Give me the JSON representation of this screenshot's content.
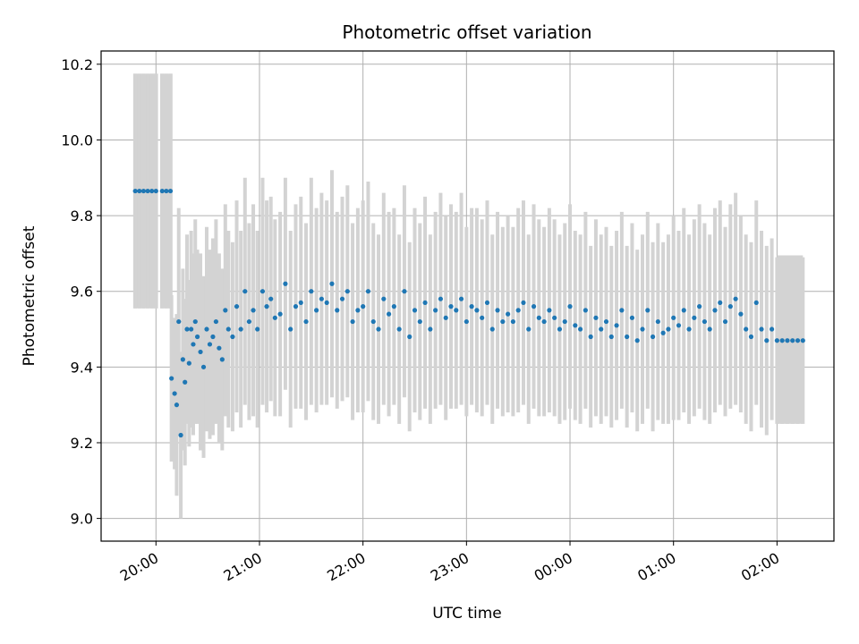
{
  "chart_data": {
    "type": "scatter",
    "title": "Photometric offset variation",
    "xlabel": "UTC time",
    "ylabel": "Photometric offset",
    "x_unit": "hours",
    "xlim": [
      19.47,
      26.55
    ],
    "ylim": [
      8.94,
      10.235
    ],
    "grid": true,
    "legend": "none",
    "x_ticks": [
      {
        "value": 20,
        "label": "20:00"
      },
      {
        "value": 21,
        "label": "21:00"
      },
      {
        "value": 22,
        "label": "22:00"
      },
      {
        "value": 23,
        "label": "23:00"
      },
      {
        "value": 24,
        "label": "00:00"
      },
      {
        "value": 25,
        "label": "01:00"
      },
      {
        "value": 26,
        "label": "02:00"
      }
    ],
    "y_ticks": [
      {
        "value": 9.0,
        "label": "9.0"
      },
      {
        "value": 9.2,
        "label": "9.2"
      },
      {
        "value": 9.4,
        "label": "9.4"
      },
      {
        "value": 9.6,
        "label": "9.6"
      },
      {
        "value": 9.8,
        "label": "9.8"
      },
      {
        "value": 10.0,
        "label": "10.0"
      },
      {
        "value": 10.2,
        "label": "10.2"
      }
    ],
    "colors": {
      "points": "#1f77b4",
      "errorbars": "#d3d3d3",
      "grid": "#b0b0b0"
    },
    "wide_errorbars": [
      {
        "x0": 19.78,
        "x1": 20.02,
        "low": 9.555,
        "high": 10.175
      },
      {
        "x0": 20.04,
        "x1": 20.16,
        "low": 9.555,
        "high": 10.175
      },
      {
        "x0": 26.0,
        "x1": 26.25,
        "low": 9.25,
        "high": 9.695
      }
    ],
    "series": [
      {
        "x": [
          19.8,
          19.84,
          19.88,
          19.92,
          19.96,
          20.0,
          20.06,
          20.1,
          20.14,
          20.15,
          20.18,
          20.2,
          20.22,
          20.24,
          20.26,
          20.28,
          20.3,
          20.32,
          20.34,
          20.36,
          20.38,
          20.4,
          20.43,
          20.46,
          20.49,
          20.52,
          20.55,
          20.58,
          20.61,
          20.64,
          20.67,
          20.7,
          20.74,
          20.78,
          20.82,
          20.86,
          20.9,
          20.94,
          20.98,
          21.03,
          21.07,
          21.11,
          21.15,
          21.2,
          21.25,
          21.3,
          21.35,
          21.4,
          21.45,
          21.5,
          21.55,
          21.6,
          21.65,
          21.7,
          21.75,
          21.8,
          21.85,
          21.9,
          21.95,
          22.0,
          22.05,
          22.1,
          22.15,
          22.2,
          22.25,
          22.3,
          22.35,
          22.4,
          22.45,
          22.5,
          22.55,
          22.6,
          22.65,
          22.7,
          22.75,
          22.8,
          22.85,
          22.9,
          22.95,
          23.0,
          23.05,
          23.1,
          23.15,
          23.2,
          23.25,
          23.3,
          23.35,
          23.4,
          23.45,
          23.5,
          23.55,
          23.6,
          23.65,
          23.7,
          23.75,
          23.8,
          23.85,
          23.9,
          23.95,
          24.0,
          24.05,
          24.1,
          24.15,
          24.2,
          24.25,
          24.3,
          24.35,
          24.4,
          24.45,
          24.5,
          24.55,
          24.6,
          24.65,
          24.7,
          24.75,
          24.8,
          24.85,
          24.9,
          24.95,
          25.0,
          25.05,
          25.1,
          25.15,
          25.2,
          25.25,
          25.3,
          25.35,
          25.4,
          25.45,
          25.5,
          25.55,
          25.6,
          25.65,
          25.7,
          25.75,
          25.8,
          25.85,
          25.9,
          25.95,
          26.0,
          26.05,
          26.1,
          26.15,
          26.2,
          26.25
        ],
        "y": [
          9.865,
          9.865,
          9.865,
          9.865,
          9.865,
          9.865,
          9.865,
          9.865,
          9.865,
          9.37,
          9.33,
          9.3,
          9.52,
          9.22,
          9.42,
          9.36,
          9.5,
          9.41,
          9.5,
          9.46,
          9.52,
          9.48,
          9.44,
          9.4,
          9.5,
          9.46,
          9.48,
          9.52,
          9.45,
          9.42,
          9.55,
          9.5,
          9.48,
          9.56,
          9.5,
          9.6,
          9.52,
          9.55,
          9.5,
          9.6,
          9.56,
          9.58,
          9.53,
          9.54,
          9.62,
          9.5,
          9.56,
          9.57,
          9.52,
          9.6,
          9.55,
          9.58,
          9.57,
          9.62,
          9.55,
          9.58,
          9.6,
          9.52,
          9.55,
          9.56,
          9.6,
          9.52,
          9.5,
          9.58,
          9.54,
          9.56,
          9.5,
          9.6,
          9.48,
          9.55,
          9.52,
          9.57,
          9.5,
          9.55,
          9.58,
          9.53,
          9.56,
          9.55,
          9.58,
          9.52,
          9.56,
          9.55,
          9.53,
          9.57,
          9.5,
          9.55,
          9.52,
          9.54,
          9.52,
          9.55,
          9.57,
          9.5,
          9.56,
          9.53,
          9.52,
          9.55,
          9.53,
          9.5,
          9.52,
          9.56,
          9.51,
          9.5,
          9.55,
          9.48,
          9.53,
          9.5,
          9.52,
          9.48,
          9.51,
          9.55,
          9.48,
          9.53,
          9.47,
          9.5,
          9.55,
          9.48,
          9.52,
          9.49,
          9.5,
          9.53,
          9.51,
          9.55,
          9.5,
          9.53,
          9.56,
          9.52,
          9.5,
          9.55,
          9.57,
          9.52,
          9.56,
          9.58,
          9.54,
          9.5,
          9.48,
          9.57,
          9.5,
          9.47,
          9.5,
          9.47,
          9.47,
          9.47,
          9.47,
          9.47,
          9.47
        ],
        "err": [
          0.31,
          0.31,
          0.31,
          0.31,
          0.31,
          0.31,
          0.31,
          0.31,
          0.31,
          0.22,
          0.2,
          0.24,
          0.3,
          0.22,
          0.24,
          0.22,
          0.25,
          0.22,
          0.26,
          0.24,
          0.27,
          0.23,
          0.26,
          0.24,
          0.27,
          0.25,
          0.26,
          0.27,
          0.25,
          0.24,
          0.28,
          0.26,
          0.25,
          0.28,
          0.26,
          0.3,
          0.26,
          0.28,
          0.26,
          0.3,
          0.28,
          0.27,
          0.26,
          0.27,
          0.28,
          0.26,
          0.27,
          0.28,
          0.26,
          0.3,
          0.27,
          0.28,
          0.27,
          0.3,
          0.26,
          0.27,
          0.28,
          0.26,
          0.27,
          0.28,
          0.29,
          0.26,
          0.25,
          0.28,
          0.27,
          0.26,
          0.25,
          0.28,
          0.25,
          0.27,
          0.26,
          0.28,
          0.25,
          0.26,
          0.28,
          0.27,
          0.27,
          0.26,
          0.28,
          0.25,
          0.26,
          0.27,
          0.26,
          0.27,
          0.25,
          0.26,
          0.25,
          0.26,
          0.25,
          0.27,
          0.27,
          0.25,
          0.27,
          0.26,
          0.25,
          0.27,
          0.26,
          0.25,
          0.26,
          0.27,
          0.25,
          0.25,
          0.26,
          0.24,
          0.26,
          0.25,
          0.25,
          0.24,
          0.25,
          0.26,
          0.24,
          0.25,
          0.24,
          0.25,
          0.26,
          0.25,
          0.26,
          0.24,
          0.25,
          0.27,
          0.25,
          0.27,
          0.25,
          0.26,
          0.27,
          0.26,
          0.25,
          0.27,
          0.27,
          0.25,
          0.27,
          0.28,
          0.26,
          0.25,
          0.25,
          0.27,
          0.26,
          0.25,
          0.24,
          0.22,
          0.22,
          0.22,
          0.22,
          0.22,
          0.22
        ]
      }
    ]
  }
}
